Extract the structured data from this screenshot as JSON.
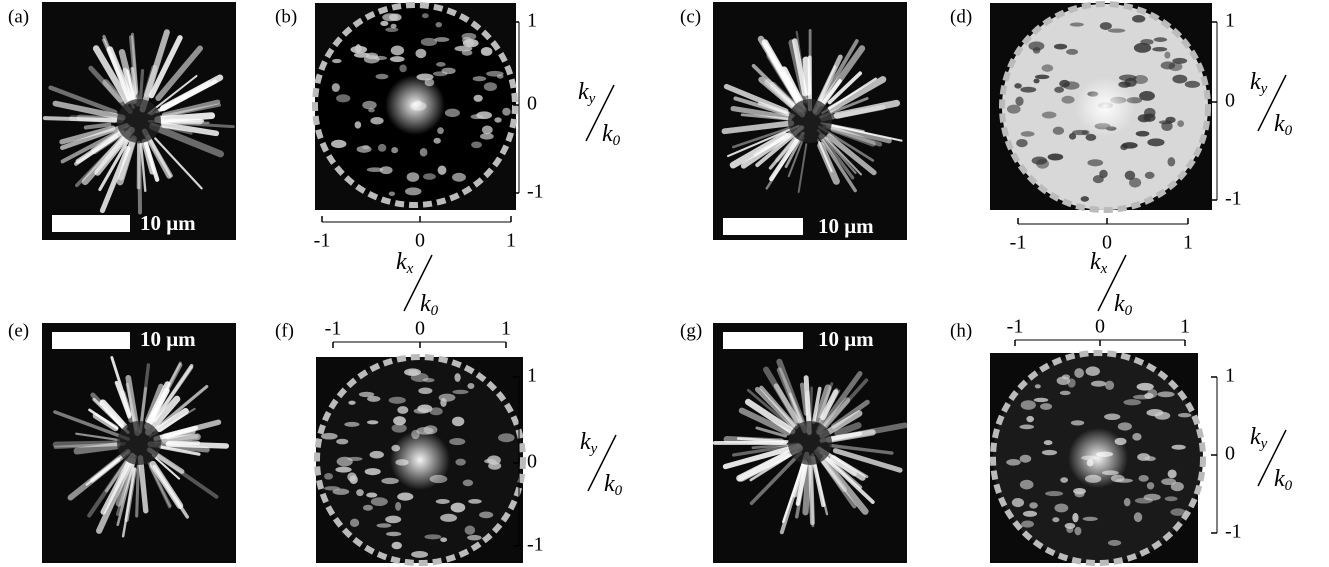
{
  "panels": [
    {
      "label": "(a)",
      "scale_bar": "10 μm"
    },
    {
      "label": "(b)",
      "x_ticks": [
        -1,
        0,
        1
      ],
      "y_ticks": [
        1,
        0,
        -1
      ],
      "x_axis": {
        "numerator": {
          "symbol": "k",
          "sub": "x"
        },
        "denominator": {
          "symbol": "k",
          "sub": "0"
        }
      },
      "y_axis": {
        "numerator": {
          "symbol": "k",
          "sub": "y"
        },
        "denominator": {
          "symbol": "k",
          "sub": "0"
        }
      }
    },
    {
      "label": "(c)",
      "scale_bar": "10 μm"
    },
    {
      "label": "(d)",
      "x_ticks": [
        -1,
        0,
        1
      ],
      "y_ticks": [
        1,
        0,
        -1
      ],
      "x_axis": {
        "numerator": {
          "symbol": "k",
          "sub": "x"
        },
        "denominator": {
          "symbol": "k",
          "sub": "0"
        }
      },
      "y_axis": {
        "numerator": {
          "symbol": "k",
          "sub": "y"
        },
        "denominator": {
          "symbol": "k",
          "sub": "0"
        }
      }
    },
    {
      "label": "(e)",
      "scale_bar": "10 μm"
    },
    {
      "label": "(f)",
      "x_ticks": [
        -1,
        0,
        1
      ],
      "y_ticks": [
        1,
        0,
        -1
      ],
      "y_axis": {
        "numerator": {
          "symbol": "k",
          "sub": "y"
        },
        "denominator": {
          "symbol": "k",
          "sub": "0"
        }
      }
    },
    {
      "label": "(g)",
      "scale_bar": "10 μm"
    },
    {
      "label": "(h)",
      "x_ticks": [
        -1,
        0,
        1
      ],
      "y_ticks": [
        1,
        0,
        -1
      ],
      "y_axis": {
        "numerator": {
          "symbol": "k",
          "sub": "y"
        },
        "denominator": {
          "symbol": "k",
          "sub": "0"
        }
      }
    }
  ]
}
